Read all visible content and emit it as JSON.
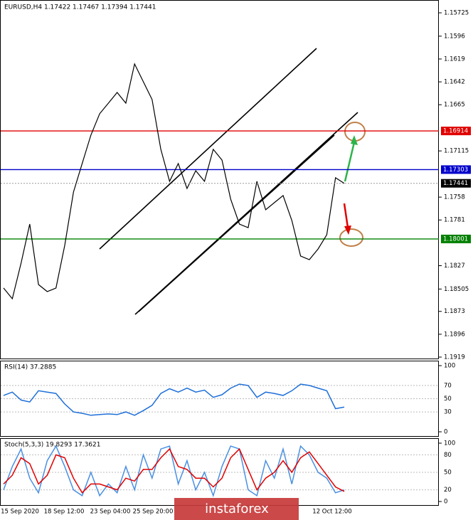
{
  "chart_data": [
    {
      "type": "price",
      "title": "EURUSD,H4  1.17422 1.17467 1.17394 1.17441",
      "values": [
        1.18495,
        1.18603,
        1.18245,
        1.17851,
        1.1846,
        1.18531,
        1.18495,
        1.18066,
        1.17529,
        1.17242,
        1.16956,
        1.16741,
        1.16634,
        1.16527,
        1.16634,
        1.1624,
        1.16419,
        1.16598,
        1.17099,
        1.17421,
        1.17242,
        1.17493,
        1.17314,
        1.17421,
        1.17099,
        1.17207,
        1.176,
        1.17851,
        1.17887,
        1.17421,
        1.17707,
        1.17636,
        1.17564,
        1.17815,
        1.18173,
        1.18209,
        1.18102,
        1.17959,
        1.17385,
        1.17441
      ],
      "color": "#000000",
      "ylim": [
        1.15725,
        1.1919
      ],
      "yticks": [
        1.1919,
        1.1896,
        1.1873,
        1.18505,
        1.1827,
        1.1781,
        1.1758,
        1.17115,
        1.1665,
        1.1642,
        1.1619,
        1.1596,
        1.15725
      ],
      "levels": [
        {
          "value": 1.18001,
          "color": "#008000"
        },
        {
          "value": 1.17303,
          "color": "#0000cc"
        },
        {
          "value": 1.16914,
          "color": "#e00000"
        }
      ],
      "last_price": 1.17441,
      "x_labels": [
        "15 Sep 2020",
        "18 Sep 12:00",
        "23 Sep 04:00",
        "25 Sep 20:00",
        "12 Oct 12:00"
      ],
      "watermark": "instaforex"
    },
    {
      "type": "oscillator",
      "title": "RSI(14) 37.2885",
      "series": [
        {
          "name": "RSI",
          "color": "#1e6fd9",
          "values": [
            55,
            60,
            48,
            45,
            62,
            60,
            58,
            42,
            30,
            28,
            25,
            26,
            27,
            26,
            30,
            25,
            32,
            40,
            58,
            65,
            60,
            66,
            60,
            63,
            52,
            56,
            66,
            72,
            70,
            52,
            60,
            58,
            55,
            62,
            72,
            70,
            66,
            62,
            35,
            37.2885
          ]
        }
      ],
      "ylim": [
        0,
        100
      ],
      "yticks": [
        100,
        70,
        50,
        30,
        0
      ]
    },
    {
      "type": "oscillator",
      "title": "Stoch(5,3,3) 19.8293 17.3621",
      "series": [
        {
          "name": "Main",
          "color": "#4a90e2",
          "values": [
            20,
            60,
            90,
            40,
            15,
            70,
            95,
            60,
            20,
            10,
            50,
            10,
            30,
            15,
            60,
            20,
            80,
            40,
            90,
            95,
            30,
            70,
            20,
            50,
            10,
            60,
            95,
            90,
            20,
            10,
            70,
            40,
            90,
            30,
            95,
            80,
            50,
            40,
            15,
            19.8293
          ]
        },
        {
          "name": "Signal",
          "color": "#e00000",
          "values": [
            30,
            45,
            75,
            65,
            30,
            45,
            80,
            75,
            40,
            15,
            30,
            30,
            25,
            20,
            40,
            35,
            55,
            55,
            75,
            90,
            60,
            55,
            40,
            40,
            25,
            40,
            75,
            90,
            55,
            20,
            40,
            50,
            70,
            50,
            75,
            85,
            65,
            45,
            25,
            17.3621
          ]
        }
      ],
      "ylim": [
        0,
        100
      ],
      "yticks": [
        100,
        80,
        50,
        20,
        0
      ]
    }
  ]
}
